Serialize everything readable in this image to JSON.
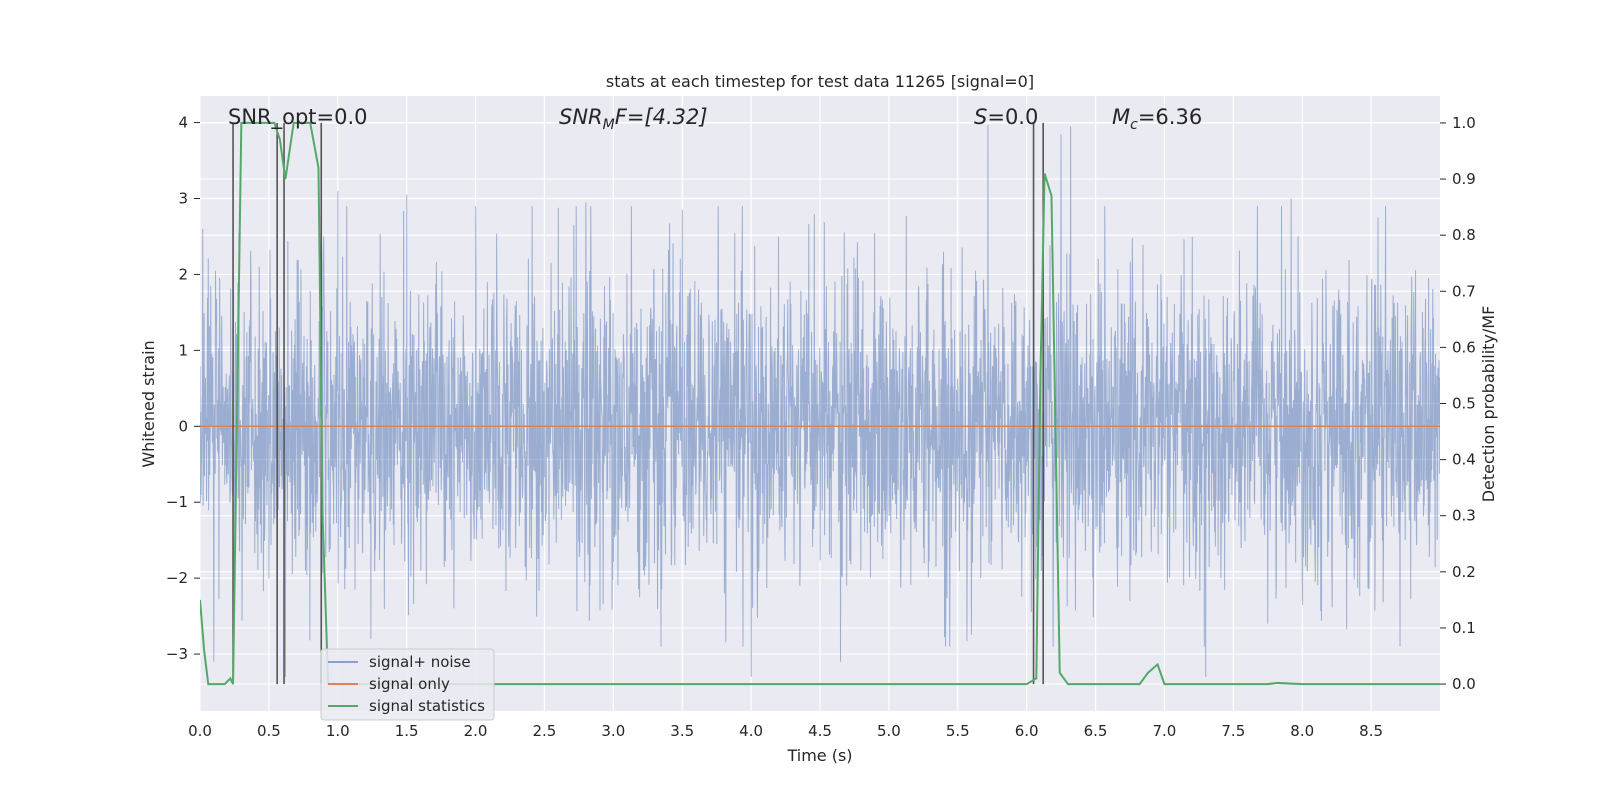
{
  "chart_data": {
    "type": "line",
    "title": "stats at each timestep for test data 11265 [signal=0]",
    "xlabel": "Time (s)",
    "ylabel_left": "Whitened strain",
    "ylabel_right": "Detection probability/MF",
    "xlim": [
      0.0,
      9.0
    ],
    "ylim_left": [
      -3.75,
      4.35
    ],
    "ylim_right": [
      -0.048,
      1.048
    ],
    "x_ticks": [
      0.0,
      0.5,
      1.0,
      1.5,
      2.0,
      2.5,
      3.0,
      3.5,
      4.0,
      4.5,
      5.0,
      5.5,
      6.0,
      6.5,
      7.0,
      7.5,
      8.0,
      8.5
    ],
    "x_tick_labels": [
      "0.0",
      "0.5",
      "1.0",
      "1.5",
      "2.0",
      "2.5",
      "3.0",
      "3.5",
      "4.0",
      "4.5",
      "5.0",
      "5.5",
      "6.0",
      "6.5",
      "7.0",
      "7.5",
      "8.0",
      "8.5"
    ],
    "y_ticks_left": [
      -3,
      -2,
      -1,
      0,
      1,
      2,
      3,
      4
    ],
    "y_tick_labels_left": [
      "−3",
      "−2",
      "−1",
      "0",
      "1",
      "2",
      "3",
      "4"
    ],
    "y_ticks_right": [
      0.0,
      0.1,
      0.2,
      0.3,
      0.4,
      0.5,
      0.6,
      0.7,
      0.8,
      0.9,
      1.0
    ],
    "y_tick_labels_right": [
      "0.0",
      "0.1",
      "0.2",
      "0.3",
      "0.4",
      "0.5",
      "0.6",
      "0.7",
      "0.8",
      "0.9",
      "1.0"
    ],
    "grid": true,
    "legend_placement": "lower-left",
    "annotations": {
      "snr_opt": "SNR_opt=0.0",
      "snr_mf_main": "SNR",
      "snr_mf_sub": "M",
      "snr_mf_tail": "F=[4.32]",
      "s_main": "S",
      "s_tail": "=0.0",
      "mc_main": "M",
      "mc_sub": "c",
      "mc_tail": "=6.36"
    },
    "colors": {
      "background": "#eaeaf2",
      "grid": "#ffffff",
      "signal_noise": "#4c72b0",
      "signal_only": "#dd8452",
      "statistics": "#55a868",
      "vlines": "#555555"
    },
    "series": [
      {
        "name": "signal+ noise",
        "axis": "left",
        "description_std": 1.0,
        "peaks": [
          [
            0.02,
            2.6
          ],
          [
            1.0,
            3.1
          ],
          [
            1.5,
            3.05
          ],
          [
            2.0,
            2.9
          ],
          [
            2.8,
            2.95
          ],
          [
            3.5,
            2.85
          ],
          [
            4.65,
            3.35
          ],
          [
            5.72,
            3.97
          ],
          [
            6.25,
            3.85
          ],
          [
            6.32,
            3.95
          ],
          [
            7.92,
            3.0
          ],
          [
            8.55,
            2.75
          ],
          [
            0.62,
            -3.3
          ],
          [
            4.0,
            -3.3
          ],
          [
            4.65,
            -3.1
          ],
          [
            7.3,
            -3.3
          ],
          [
            0.1,
            -3.1
          ]
        ]
      },
      {
        "name": "signal only",
        "axis": "left",
        "constant": 0.0
      },
      {
        "name": "signal statistics",
        "axis": "right",
        "x": [
          0.0,
          0.03,
          0.06,
          0.18,
          0.22,
          0.24,
          0.27,
          0.3,
          0.36,
          0.42,
          0.48,
          0.54,
          0.58,
          0.62,
          0.68,
          0.74,
          0.8,
          0.86,
          0.89,
          0.93,
          0.98,
          1.05,
          1.5,
          2.0,
          3.0,
          4.0,
          5.0,
          5.5,
          6.0,
          6.07,
          6.1,
          6.13,
          6.18,
          6.24,
          6.3,
          6.4,
          6.6,
          6.82,
          6.88,
          6.95,
          7.0,
          7.5,
          7.75,
          7.82,
          8.0,
          8.5,
          9.0
        ],
        "values": [
          0.15,
          0.06,
          0.0,
          0.0,
          0.01,
          0.0,
          0.5,
          1.0,
          1.0,
          1.0,
          1.0,
          1.0,
          0.97,
          0.9,
          1.0,
          1.0,
          1.0,
          0.92,
          0.3,
          0.0,
          0.0,
          0.0,
          0.0,
          0.0,
          0.0,
          0.0,
          0.0,
          0.0,
          0.0,
          0.01,
          0.55,
          0.91,
          0.87,
          0.02,
          0.0,
          0.0,
          0.0,
          0.0,
          0.02,
          0.035,
          0.0,
          0.0,
          0.0,
          0.002,
          0.0,
          0.0,
          0.0
        ]
      }
    ],
    "vertical_lines_x": [
      0.24,
      0.56,
      0.61,
      0.88,
      6.05,
      6.12
    ]
  }
}
